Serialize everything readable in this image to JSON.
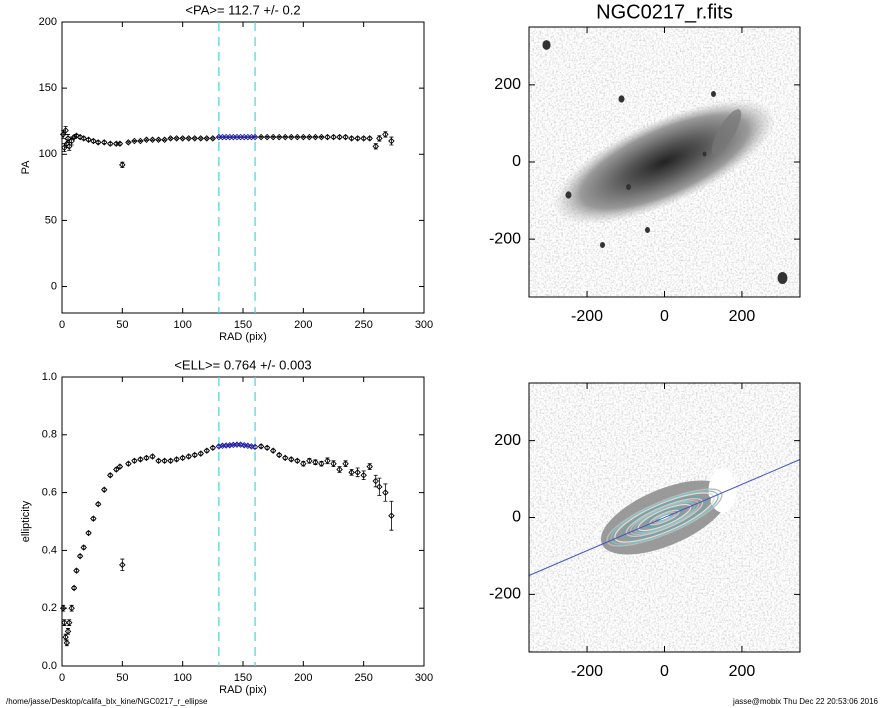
{
  "chart_data": [
    {
      "type": "scatter",
      "title": "<PA>= 112.7 +/-   0.2",
      "xlabel": "RAD (pix)",
      "ylabel": "PA",
      "x": [
        1,
        2,
        3,
        4,
        5,
        6,
        8,
        10,
        12,
        15,
        18,
        22,
        26,
        30,
        35,
        40,
        45,
        48,
        50,
        55,
        60,
        65,
        70,
        75,
        80,
        85,
        90,
        95,
        100,
        105,
        110,
        115,
        120,
        125,
        130,
        133,
        136,
        139,
        142,
        145,
        148,
        151,
        154,
        157,
        160,
        165,
        170,
        175,
        180,
        185,
        190,
        195,
        200,
        205,
        210,
        215,
        220,
        225,
        230,
        235,
        240,
        245,
        250,
        255,
        260,
        263,
        268,
        273
      ],
      "values": [
        115,
        105,
        118,
        108,
        112,
        106,
        110,
        113,
        114,
        113,
        112,
        111,
        110,
        109,
        109,
        108,
        108,
        108,
        92,
        109,
        110,
        110,
        111,
        111,
        111,
        111,
        112,
        112,
        112,
        112,
        112,
        112,
        112,
        112,
        113,
        113,
        113,
        113,
        113,
        113,
        113,
        113,
        113,
        113,
        113,
        113,
        113,
        113,
        113,
        113,
        113,
        113,
        113,
        113,
        113,
        113,
        113,
        113,
        113,
        113,
        112,
        112,
        112,
        112,
        106,
        112,
        115,
        110
      ],
      "errors": [
        3,
        3,
        3,
        3,
        3,
        3,
        3,
        1,
        1,
        1,
        1,
        1,
        1,
        1,
        1,
        1,
        1,
        1,
        2,
        0.5,
        0.5,
        0.5,
        0.5,
        0.5,
        0.5,
        0.5,
        0.5,
        0.5,
        0.5,
        0.5,
        0.5,
        0.5,
        0.5,
        0.5,
        0.3,
        0.3,
        0.3,
        0.3,
        0.3,
        0.3,
        0.3,
        0.3,
        0.3,
        0.3,
        0.5,
        0.5,
        0.5,
        0.5,
        0.5,
        0.5,
        0.5,
        0.5,
        0.5,
        0.5,
        0.5,
        0.5,
        1,
        1,
        1,
        1,
        1,
        1,
        1,
        1,
        2,
        2,
        2,
        3
      ],
      "color": "#000000",
      "highlight_color": "#1a1aa0",
      "vlines": [
        130,
        160
      ],
      "vline_color": "#5fd3d3",
      "xlim": [
        0,
        300
      ],
      "xticks": [
        0,
        50,
        100,
        150,
        200,
        250,
        300
      ],
      "ylim": [
        -20,
        200
      ],
      "yticks": [
        0,
        50,
        100,
        150,
        200
      ]
    },
    {
      "type": "scatter",
      "title": "<ELL>= 0.764 +/-  0.003",
      "xlabel": "RAD (pix)",
      "ylabel": "ellipticity",
      "x": [
        1,
        2,
        3,
        4,
        5,
        6,
        8,
        10,
        12,
        15,
        18,
        22,
        26,
        30,
        35,
        40,
        45,
        48,
        50,
        55,
        60,
        65,
        70,
        75,
        80,
        85,
        90,
        95,
        100,
        105,
        110,
        115,
        120,
        125,
        130,
        133,
        136,
        139,
        142,
        145,
        148,
        151,
        154,
        157,
        160,
        165,
        170,
        175,
        180,
        185,
        190,
        195,
        200,
        205,
        210,
        215,
        220,
        225,
        230,
        235,
        240,
        245,
        250,
        255,
        260,
        263,
        268,
        273
      ],
      "values": [
        0.2,
        0.15,
        0.1,
        0.08,
        0.12,
        0.15,
        0.2,
        0.27,
        0.33,
        0.38,
        0.41,
        0.46,
        0.51,
        0.56,
        0.61,
        0.66,
        0.68,
        0.69,
        0.35,
        0.7,
        0.71,
        0.715,
        0.72,
        0.725,
        0.71,
        0.71,
        0.71,
        0.715,
        0.72,
        0.725,
        0.73,
        0.735,
        0.745,
        0.755,
        0.76,
        0.762,
        0.763,
        0.764,
        0.765,
        0.766,
        0.766,
        0.764,
        0.762,
        0.76,
        0.758,
        0.76,
        0.755,
        0.745,
        0.73,
        0.72,
        0.715,
        0.71,
        0.7,
        0.71,
        0.705,
        0.7,
        0.71,
        0.7,
        0.68,
        0.7,
        0.67,
        0.67,
        0.66,
        0.69,
        0.64,
        0.62,
        0.6,
        0.52
      ],
      "errors": [
        0.01,
        0.01,
        0.01,
        0.01,
        0.01,
        0.01,
        0.01,
        0.005,
        0.005,
        0.005,
        0.005,
        0.005,
        0.005,
        0.005,
        0.005,
        0.005,
        0.005,
        0.005,
        0.02,
        0.005,
        0.005,
        0.005,
        0.005,
        0.005,
        0.005,
        0.005,
        0.005,
        0.005,
        0.005,
        0.005,
        0.005,
        0.005,
        0.005,
        0.005,
        0.003,
        0.003,
        0.003,
        0.003,
        0.003,
        0.003,
        0.003,
        0.003,
        0.003,
        0.003,
        0.005,
        0.005,
        0.005,
        0.005,
        0.005,
        0.005,
        0.005,
        0.005,
        0.008,
        0.008,
        0.008,
        0.008,
        0.01,
        0.01,
        0.01,
        0.01,
        0.01,
        0.015,
        0.015,
        0.01,
        0.02,
        0.03,
        0.03,
        0.05
      ],
      "color": "#000000",
      "highlight_color": "#1a1aa0",
      "vlines": [
        130,
        160
      ],
      "vline_color": "#5fd3d3",
      "xlim": [
        0,
        300
      ],
      "xticks": [
        0,
        50,
        100,
        150,
        200,
        250,
        300
      ],
      "ylim": [
        0,
        1
      ],
      "yticks": [
        {
          "value": 0,
          "label": "0.0"
        },
        0.2,
        0.4,
        0.6,
        0.8,
        {
          "value": 1,
          "label": "1.0"
        }
      ]
    },
    {
      "type": "image",
      "title": "NGC0217_r.fits",
      "xlim": [
        -350,
        350
      ],
      "xticks": [
        -200,
        0,
        200
      ],
      "ylim": [
        -350,
        350
      ],
      "yticks": [
        -200,
        0,
        200
      ]
    },
    {
      "type": "image",
      "xlim": [
        -350,
        350
      ],
      "xticks": [
        -200,
        0,
        200
      ],
      "ylim": [
        -350,
        350
      ],
      "yticks": [
        -200,
        0,
        200
      ]
    }
  ],
  "footer": {
    "left": "/home/jasse/Desktop/califa_blx_kine/NGC0217_r_ellipse",
    "right": "jasse@mobix  Thu Dec 22 20:53:06 2016"
  }
}
